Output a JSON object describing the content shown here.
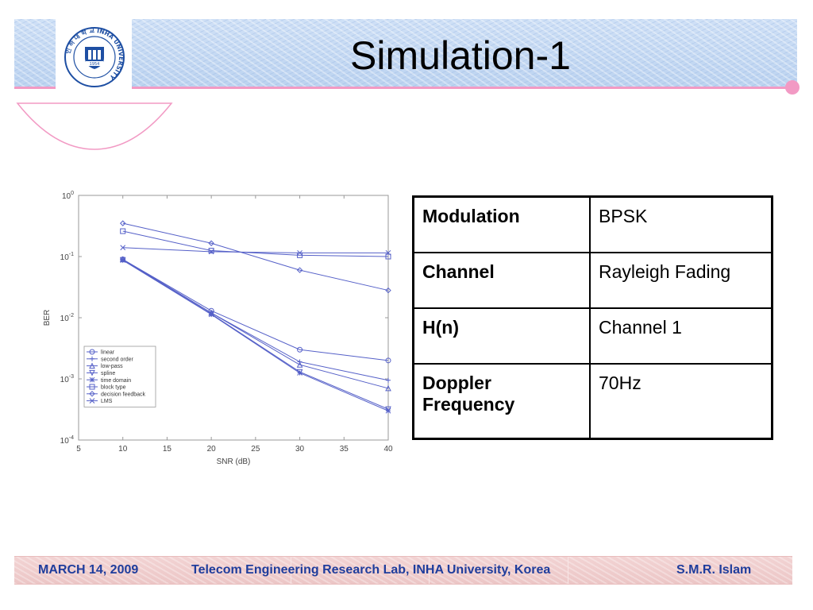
{
  "slide": {
    "title": "Simulation-1",
    "logo": {
      "icon": "inha-university-seal-icon",
      "ring_text": "인 하 대 학 교 INHA UNIVERSITY",
      "year": "1954",
      "color": "#1e4fa3"
    }
  },
  "table": {
    "rows": [
      {
        "key": "Modulation",
        "value": "BPSK"
      },
      {
        "key": "Channel",
        "value": "Rayleigh Fading"
      },
      {
        "key": "H(n)",
        "value": "Channel 1"
      },
      {
        "key": "Doppler Frequency",
        "value": "70Hz"
      }
    ]
  },
  "footer": {
    "date": "MARCH 14, 2009",
    "lab": "Telecom Engineering Research Lab, INHA University, Korea",
    "author": "S.M.R. Islam",
    "text_color": "#1f3d9c"
  },
  "chart_data": {
    "type": "line",
    "xlabel": "SNR (dB)",
    "ylabel": "BER",
    "xlim": [
      5,
      40
    ],
    "ylim": [
      0.0001,
      1
    ],
    "yscale": "log",
    "grid": false,
    "legend_position": "bottom-left",
    "x_ticks": [
      "5",
      "10",
      "15",
      "20",
      "25",
      "30",
      "35",
      "40"
    ],
    "y_ticks": [
      {
        "base": "10",
        "exp": "0"
      },
      {
        "base": "10",
        "exp": "-1"
      },
      {
        "base": "10",
        "exp": "-2"
      },
      {
        "base": "10",
        "exp": "-3"
      },
      {
        "base": "10",
        "exp": "-4"
      }
    ],
    "x": [
      10,
      20,
      30,
      40
    ],
    "series": [
      {
        "name": "linear",
        "marker": "circle",
        "values": [
          0.09,
          0.013,
          0.003,
          0.002
        ]
      },
      {
        "name": "second order",
        "marker": "plus",
        "values": [
          0.09,
          0.012,
          0.0019,
          0.00095
        ]
      },
      {
        "name": "low-pass",
        "marker": "triangle-up",
        "values": [
          0.09,
          0.012,
          0.0017,
          0.0007
        ]
      },
      {
        "name": "spline",
        "marker": "triangle-down",
        "values": [
          0.088,
          0.0115,
          0.0013,
          0.00032
        ]
      },
      {
        "name": "time domain",
        "marker": "star",
        "values": [
          0.087,
          0.0113,
          0.00125,
          0.0003
        ]
      },
      {
        "name": "block type",
        "marker": "square",
        "values": [
          0.26,
          0.125,
          0.105,
          0.1
        ]
      },
      {
        "name": "decision feedback",
        "marker": "diamond",
        "values": [
          0.35,
          0.165,
          0.06,
          0.028
        ]
      },
      {
        "name": "LMS",
        "marker": "x",
        "values": [
          0.14,
          0.12,
          0.115,
          0.115
        ]
      }
    ],
    "line_color": "#5560c8"
  }
}
